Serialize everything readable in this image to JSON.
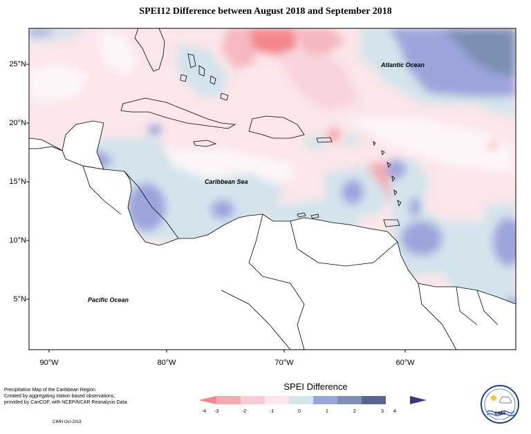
{
  "title": "SPEI12 Difference between August 2018 and September 2018",
  "map": {
    "lat_labels": [
      "25°N",
      "20°N",
      "15°N",
      "10°N",
      "5°N"
    ],
    "lon_labels": [
      "90°W",
      "80°W",
      "70°W",
      "60°W"
    ],
    "places": {
      "atlantic": "Atlantic Ocean",
      "caribbean": "Caribbean Sea",
      "pacific": "Pacific Ocean"
    }
  },
  "notes": {
    "line1": "Precipitation Map of the Caribbean Region.",
    "line2": "Created by aggregating station based observations,",
    "line3": "provided by CariCOF, with NCEP/NCAR Reanalysis Data.",
    "credit": "CIMH Oct-2018"
  },
  "legend": {
    "title": "SPEI Difference",
    "ticks": [
      "-4",
      "-3",
      "-2",
      "-1",
      "0",
      "1",
      "2",
      "3",
      "4"
    ],
    "colors": [
      "#f4868e",
      "#f5aab0",
      "#f7ccd2",
      "#fbe6ea",
      "#d3e4ec",
      "#9ba5dc",
      "#7b8fb4",
      "#5a6690",
      "#3e3a78"
    ]
  },
  "logo": {
    "label": "CIMH"
  }
}
